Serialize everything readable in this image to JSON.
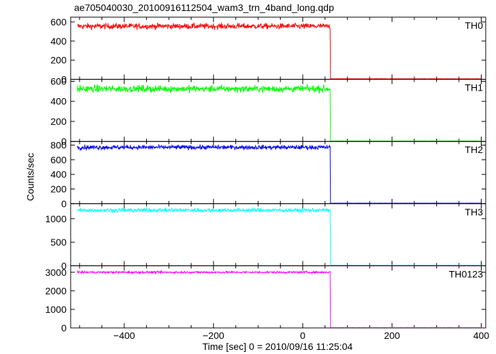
{
  "title": "ae705040030_20100916112504_wam3_trn_4band_long.qdp",
  "chart_data": {
    "type": "line",
    "title": "ae705040030_20100916112504_wam3_trn_4band_long.qdp",
    "xlabel": "Time [sec] 0 = 2010/09/16 11:25:04",
    "ylabel": "Counts/sec",
    "xlim": [
      -520,
      410
    ],
    "x_ticks": [
      -400,
      -200,
      0,
      200,
      400
    ],
    "x_tick_labels": [
      "−400",
      "−200",
      "0",
      "200",
      "400"
    ],
    "series": [
      {
        "name": "TH0",
        "color": "#ff0000",
        "ylim": [
          0,
          650
        ],
        "y_ticks": [
          0,
          200,
          400,
          600
        ],
        "level": 555,
        "noise": 22,
        "drop_x": 62,
        "drop_to": 4,
        "x_start": -505,
        "x_end": 402
      },
      {
        "name": "TH1",
        "color": "#00ff00",
        "ylim": [
          0,
          620
        ],
        "y_ticks": [
          0,
          200,
          400,
          600
        ],
        "level": 525,
        "noise": 25,
        "drop_x": 62,
        "drop_to": 4,
        "x_start": -505,
        "x_end": 402
      },
      {
        "name": "TH2",
        "color": "#0000ff",
        "ylim": [
          0,
          850
        ],
        "y_ticks": [
          0,
          200,
          400,
          600,
          800
        ],
        "level": 770,
        "noise": 22,
        "drop_x": 62,
        "drop_to": 5,
        "x_start": -505,
        "x_end": 402
      },
      {
        "name": "TH3",
        "color": "#00ffff",
        "ylim": [
          0,
          1320
        ],
        "y_ticks": [
          0,
          500,
          1000
        ],
        "level": 1180,
        "noise": 30,
        "drop_x": 62,
        "drop_to": 8,
        "x_start": -505,
        "x_end": 402
      },
      {
        "name": "TH0123",
        "color": "#ff00ff",
        "ylim": [
          0,
          3350
        ],
        "y_ticks": [
          0,
          1000,
          2000,
          3000
        ],
        "level": 3000,
        "noise": 40,
        "drop_x": 62,
        "drop_to": 20,
        "x_start": -505,
        "x_end": 402
      }
    ],
    "grid": false,
    "legend": "panel labels top-right"
  }
}
